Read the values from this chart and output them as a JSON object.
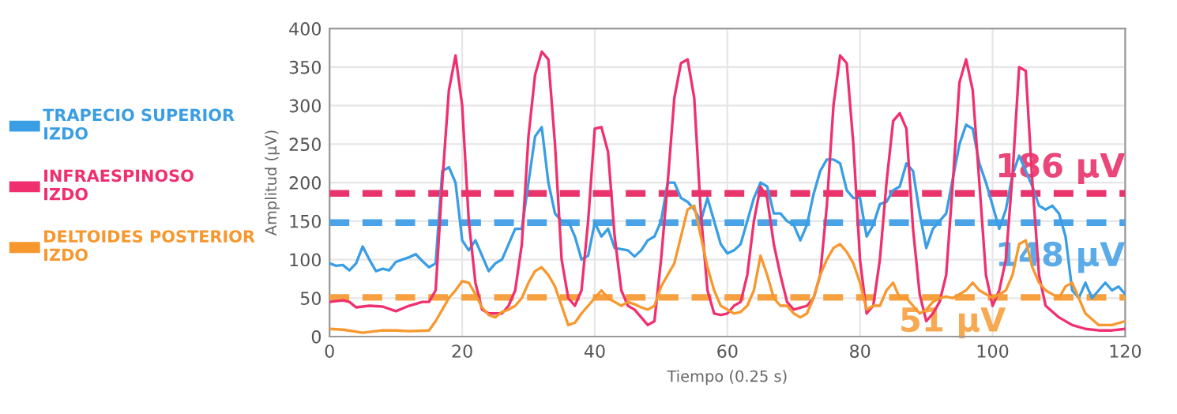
{
  "chart_data": {
    "type": "line",
    "xlabel": "Tiempo (0.25 s)",
    "ylabel": "Amplitud (µV)",
    "xlim": [
      0,
      120
    ],
    "xticks": [
      0,
      20,
      40,
      60,
      80,
      100,
      120
    ],
    "ylim": [
      0,
      400
    ],
    "yticks": [
      0,
      50,
      100,
      150,
      200,
      250,
      300,
      350,
      400
    ],
    "grid": true,
    "legend": "left",
    "marker": "none",
    "line_style": "solid",
    "series": [
      {
        "name": "TRAPECIO SUPERIOR\nIZDO",
        "color": "#3a9ee4",
        "x": [
          0,
          1,
          2,
          3,
          4,
          5,
          6,
          7,
          8,
          9,
          10,
          12,
          13,
          14,
          15,
          16,
          17,
          18,
          19,
          20,
          21,
          22,
          23,
          24,
          25,
          26,
          27,
          28,
          29,
          30,
          31,
          32,
          33,
          34,
          35,
          36,
          37,
          38,
          39,
          40,
          41,
          42,
          43,
          45,
          46,
          47,
          48,
          49,
          50,
          51,
          52,
          53,
          54,
          55,
          56,
          57,
          58,
          59,
          60,
          61,
          62,
          64,
          65,
          66,
          67,
          68,
          69,
          70,
          71,
          72,
          73,
          74,
          75,
          76,
          77,
          78,
          79,
          80,
          81,
          82,
          83,
          84,
          85,
          86,
          87,
          88,
          89,
          90,
          91,
          92,
          93,
          94,
          95,
          96,
          97,
          98,
          99,
          100,
          101,
          102,
          103,
          104,
          105,
          106,
          107,
          108,
          109,
          110,
          111,
          112,
          113,
          114,
          115,
          116,
          117,
          118,
          119,
          120
        ],
        "values": [
          95,
          92,
          93,
          86,
          95,
          117,
          100,
          85,
          88,
          86,
          97,
          103,
          107,
          98,
          90,
          95,
          215,
          220,
          200,
          125,
          112,
          125,
          105,
          85,
          95,
          100,
          120,
          140,
          140,
          200,
          260,
          272,
          200,
          160,
          150,
          150,
          130,
          100,
          105,
          148,
          130,
          140,
          115,
          112,
          104,
          112,
          125,
          130,
          150,
          200,
          200,
          180,
          175,
          165,
          150,
          180,
          150,
          120,
          108,
          112,
          120,
          180,
          200,
          195,
          160,
          160,
          150,
          145,
          125,
          145,
          185,
          215,
          230,
          230,
          225,
          190,
          180,
          180,
          130,
          145,
          172,
          175,
          190,
          195,
          225,
          215,
          160,
          115,
          140,
          150,
          160,
          205,
          250,
          275,
          270,
          225,
          200,
          170,
          140,
          165,
          210,
          235,
          215,
          195,
          170,
          165,
          170,
          160,
          130,
          60,
          50,
          70,
          50,
          60,
          70,
          60,
          65,
          55
        ]
      },
      {
        "name": "INFRAESPINOSO\nIZDO",
        "color": "#f0306e",
        "x": [
          0,
          2,
          3,
          4,
          6,
          8,
          10,
          12,
          14,
          15,
          16,
          17,
          18,
          19,
          20,
          21,
          22,
          23,
          24,
          26,
          27,
          28,
          29,
          30,
          31,
          32,
          33,
          34,
          35,
          36,
          37,
          38,
          39,
          40,
          41,
          42,
          43,
          44,
          45,
          46,
          47,
          48,
          49,
          50,
          51,
          52,
          53,
          54,
          55,
          56,
          57,
          58,
          59,
          60,
          61,
          62,
          63,
          64,
          65,
          66,
          67,
          68,
          69,
          70,
          72,
          73,
          74,
          75,
          76,
          77,
          78,
          79,
          80,
          81,
          82,
          83,
          84,
          85,
          86,
          87,
          88,
          89,
          90,
          91,
          92,
          93,
          94,
          95,
          96,
          97,
          98,
          99,
          100,
          101,
          102,
          103,
          104,
          105,
          106,
          107,
          108,
          110,
          112,
          114,
          116,
          118,
          120
        ],
        "values": [
          45,
          47,
          45,
          38,
          40,
          39,
          33,
          40,
          45,
          45,
          60,
          200,
          320,
          365,
          300,
          150,
          70,
          35,
          30,
          30,
          40,
          60,
          120,
          260,
          340,
          370,
          360,
          250,
          100,
          50,
          40,
          60,
          150,
          270,
          272,
          240,
          130,
          60,
          40,
          35,
          25,
          15,
          20,
          100,
          200,
          310,
          355,
          360,
          310,
          160,
          60,
          30,
          28,
          30,
          40,
          45,
          80,
          150,
          195,
          180,
          120,
          80,
          45,
          35,
          40,
          50,
          80,
          170,
          300,
          365,
          355,
          250,
          100,
          30,
          40,
          100,
          200,
          280,
          290,
          270,
          140,
          55,
          20,
          30,
          45,
          80,
          200,
          330,
          360,
          320,
          200,
          80,
          40,
          60,
          100,
          210,
          350,
          345,
          200,
          80,
          40,
          25,
          15,
          10,
          8,
          8,
          10
        ]
      },
      {
        "name": "DELTOIDES POSTERIOR\nIZDO",
        "color": "#f7982f",
        "x": [
          0,
          2,
          5,
          8,
          10,
          12,
          15,
          16,
          17,
          18,
          19,
          20,
          21,
          22,
          23,
          24,
          25,
          26,
          27,
          28,
          29,
          30,
          31,
          32,
          33,
          34,
          35,
          36,
          37,
          38,
          39,
          40,
          41,
          42,
          43,
          44,
          45,
          46,
          47,
          48,
          49,
          50,
          51,
          52,
          53,
          54,
          55,
          56,
          57,
          58,
          59,
          60,
          61,
          62,
          63,
          64,
          65,
          66,
          67,
          68,
          69,
          70,
          71,
          72,
          73,
          74,
          75,
          76,
          77,
          78,
          79,
          80,
          81,
          82,
          83,
          84,
          85,
          86,
          87,
          88,
          89,
          90,
          91,
          92,
          93,
          94,
          95,
          96,
          97,
          98,
          99,
          100,
          101,
          102,
          103,
          104,
          105,
          106,
          107,
          108,
          109,
          110,
          111,
          112,
          113,
          114,
          116,
          118,
          120
        ],
        "values": [
          10,
          9,
          5,
          8,
          8,
          7,
          8,
          20,
          35,
          50,
          60,
          72,
          70,
          55,
          38,
          28,
          25,
          32,
          35,
          40,
          50,
          70,
          85,
          90,
          80,
          65,
          40,
          15,
          18,
          30,
          40,
          50,
          60,
          50,
          45,
          40,
          45,
          42,
          38,
          35,
          40,
          65,
          80,
          95,
          130,
          165,
          170,
          130,
          90,
          60,
          40,
          35,
          30,
          32,
          40,
          60,
          105,
          80,
          50,
          40,
          40,
          30,
          25,
          30,
          50,
          80,
          100,
          115,
          120,
          110,
          95,
          70,
          35,
          40,
          40,
          60,
          70,
          50,
          50,
          40,
          30,
          35,
          45,
          50,
          52,
          50,
          55,
          60,
          70,
          60,
          55,
          50,
          55,
          60,
          80,
          120,
          125,
          90,
          70,
          60,
          55,
          50,
          65,
          70,
          50,
          30,
          15,
          15,
          20
        ]
      }
    ],
    "ref_lines": [
      {
        "axis": "y",
        "value": 186,
        "label": "186 µV",
        "color": "#e8336b",
        "line_style": "dashed"
      },
      {
        "axis": "y",
        "value": 148,
        "label": "148 µV",
        "color": "#4aa3e6",
        "line_style": "dashed"
      },
      {
        "axis": "y",
        "value": 51,
        "label": "51 µV",
        "color": "#f7a040",
        "line_style": "dashed"
      }
    ]
  }
}
